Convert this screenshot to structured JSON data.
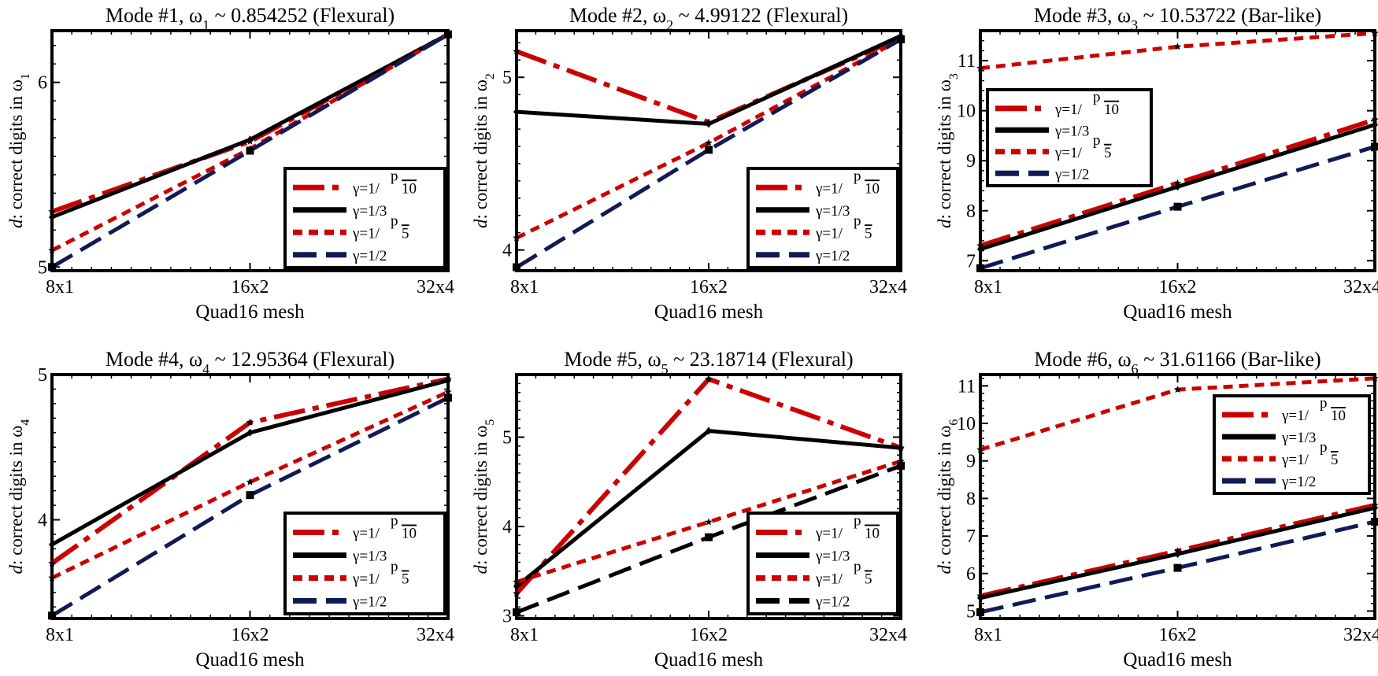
{
  "figure": {
    "legend_placement": "lower-right",
    "marker_colors": {
      "star": "#000000",
      "square": "#000000"
    }
  },
  "chart_data": [
    {
      "type": "line",
      "title": "Mode #1, ω₁ ~ 0.854252 (Flexural)",
      "title_parts": {
        "pre": "Mode #1, ω",
        "sub": "1",
        "post": " ~ 0.854252 (Flexural)"
      },
      "xlabel": "Quad16 mesh",
      "ylabel_parts": {
        "italic": "d",
        "pre": ": correct digits in ω",
        "sub": "1"
      },
      "categories": [
        "8x1",
        "16x2",
        "32x4"
      ],
      "ylim": [
        4.98,
        6.28
      ],
      "yticks": [
        5,
        6
      ],
      "legend_placement": "lower-right",
      "series": [
        {
          "name": "γ=1/p 10",
          "label_main": "γ=1/",
          "label_sup": "p",
          "label_over": "10",
          "color": "#cc0000",
          "dash": "40,10,8,10",
          "width": 6,
          "values": [
            5.3,
            5.68,
            6.26
          ]
        },
        {
          "name": "γ=1/3",
          "label_main": "γ=1/3",
          "color": "#000000",
          "dash": "",
          "width": 5,
          "values": [
            5.27,
            5.69,
            6.26
          ]
        },
        {
          "name": "γ=1/p 5",
          "label_main": "γ=1/",
          "label_sup": "p",
          "label_over": "5",
          "color": "#cc0000",
          "dash": "12,8",
          "width": 5,
          "values": [
            5.09,
            5.64,
            6.26
          ]
        },
        {
          "name": "γ=1/2",
          "label_main": "γ=1/2",
          "color": "#101a55",
          "dash": "30,12",
          "width": 5,
          "values": [
            5.0,
            5.63,
            6.26
          ]
        }
      ]
    },
    {
      "type": "line",
      "title": "Mode #2, ω₂ ~ 4.99122 (Flexural)",
      "title_parts": {
        "pre": "Mode #2, ω",
        "sub": "2",
        "post": " ~ 4.99122 (Flexural)"
      },
      "xlabel": "Quad16 mesh",
      "ylabel_parts": {
        "italic": "d",
        "pre": ": correct digits in ω",
        "sub": "2"
      },
      "categories": [
        "8x1",
        "16x2",
        "32x4"
      ],
      "ylim": [
        3.88,
        5.27
      ],
      "yticks": [
        4,
        5
      ],
      "legend_placement": "lower-right",
      "series": [
        {
          "name": "γ=1/p 10",
          "label_main": "γ=1/",
          "label_sup": "p",
          "label_over": "10",
          "color": "#cc0000",
          "dash": "40,10,8,10",
          "width": 6,
          "values": [
            5.15,
            4.74,
            5.23
          ]
        },
        {
          "name": "γ=1/3",
          "label_main": "γ=1/3",
          "color": "#000000",
          "dash": "",
          "width": 5,
          "values": [
            4.8,
            4.73,
            5.24
          ]
        },
        {
          "name": "γ=1/p 5",
          "label_main": "γ=1/",
          "label_sup": "p",
          "label_over": "5",
          "color": "#cc0000",
          "dash": "12,8",
          "width": 5,
          "values": [
            4.07,
            4.62,
            5.22
          ]
        },
        {
          "name": "γ=1/2",
          "label_main": "γ=1/2",
          "color": "#101a55",
          "dash": "30,12",
          "width": 5,
          "values": [
            3.9,
            4.58,
            5.22
          ]
        }
      ]
    },
    {
      "type": "line",
      "title": "Mode #3, ω₃ ~ 10.53722 (Bar-like)",
      "title_parts": {
        "pre": "Mode #3, ω",
        "sub": "3",
        "post": " ~ 10.53722 (Bar-like)"
      },
      "xlabel": "Quad16 mesh",
      "ylabel_parts": {
        "italic": "d",
        "pre": ": correct digits in ω",
        "sub": "3"
      },
      "categories": [
        "8x1",
        "16x2",
        "32x4"
      ],
      "ylim": [
        6.8,
        11.6
      ],
      "yticks": [
        7,
        8,
        9,
        10,
        11
      ],
      "legend_placement": "upper-left",
      "series": [
        {
          "name": "γ=1/p 10",
          "label_main": "γ=1/",
          "label_sup": "p",
          "label_over": "10",
          "color": "#cc0000",
          "dash": "40,10,8,10",
          "width": 6,
          "values": [
            7.3,
            8.55,
            9.82
          ]
        },
        {
          "name": "γ=1/3",
          "label_main": "γ=1/3",
          "color": "#000000",
          "dash": "",
          "width": 5,
          "values": [
            7.23,
            8.48,
            9.72
          ]
        },
        {
          "name": "γ=1/p 5",
          "label_main": "γ=1/",
          "label_sup": "p",
          "label_over": "5",
          "color": "#cc0000",
          "dash": "12,8",
          "width": 5,
          "values": [
            10.85,
            11.28,
            11.55
          ]
        },
        {
          "name": "γ=1/2",
          "label_main": "γ=1/2",
          "color": "#101a55",
          "dash": "30,12",
          "width": 5,
          "values": [
            6.85,
            8.08,
            9.28
          ]
        }
      ]
    },
    {
      "type": "line",
      "title": "Mode #4, ω₄ ~ 12.95364 (Flexural)",
      "title_parts": {
        "pre": "Mode #4, ω",
        "sub": "4",
        "post": " ~ 12.95364 (Flexural)"
      },
      "xlabel": "Quad16 mesh",
      "ylabel_parts": {
        "italic": "d",
        "pre": ": correct digits in ω",
        "sub": "4"
      },
      "categories": [
        "8x1",
        "16x2",
        "32x4"
      ],
      "ylim": [
        3.32,
        5.0
      ],
      "yticks": [
        4,
        5
      ],
      "legend_placement": "lower-right",
      "series": [
        {
          "name": "γ=1/p 10",
          "label_main": "γ=1/",
          "label_sup": "p",
          "label_over": "10",
          "color": "#cc0000",
          "dash": "40,10,8,10",
          "width": 6,
          "values": [
            3.7,
            4.67,
            4.97
          ]
        },
        {
          "name": "γ=1/3",
          "label_main": "γ=1/3",
          "color": "#000000",
          "dash": "",
          "width": 5,
          "values": [
            3.83,
            4.6,
            4.96
          ]
        },
        {
          "name": "γ=1/p 5",
          "label_main": "γ=1/",
          "label_sup": "p",
          "label_over": "5",
          "color": "#cc0000",
          "dash": "12,8",
          "width": 5,
          "values": [
            3.6,
            4.26,
            4.88
          ]
        },
        {
          "name": "γ=1/2",
          "label_main": "γ=1/2",
          "color": "#101a55",
          "dash": "30,12",
          "width": 5,
          "values": [
            3.34,
            4.17,
            4.84
          ]
        }
      ]
    },
    {
      "type": "line",
      "title": "Mode #5, ω₅ ~ 23.18714  (Flexural)",
      "title_parts": {
        "pre": "Mode #5, ω",
        "sub": "5",
        "post": " ~ 23.18714  (Flexural)"
      },
      "xlabel": "Quad16 mesh",
      "ylabel_parts": {
        "italic": "d",
        "pre": ": correct digits in ω",
        "sub": "5"
      },
      "categories": [
        "8x1",
        "16x2",
        "32x4"
      ],
      "ylim": [
        2.97,
        5.7
      ],
      "yticks": [
        3,
        4,
        5
      ],
      "legend_placement": "lower-right",
      "series": [
        {
          "name": "γ=1/p 10",
          "label_main": "γ=1/",
          "label_sup": "p",
          "label_over": "10",
          "color": "#cc0000",
          "dash": "40,10,8,10",
          "width": 6,
          "values": [
            3.25,
            5.65,
            4.88
          ]
        },
        {
          "name": "γ=1/3",
          "label_main": "γ=1/3",
          "color": "#000000",
          "dash": "",
          "width": 5,
          "values": [
            3.33,
            5.07,
            4.88
          ]
        },
        {
          "name": "γ=1/p 5",
          "label_main": "γ=1/",
          "label_sup": "p",
          "label_over": "5",
          "color": "#cc0000",
          "dash": "12,8",
          "width": 5,
          "values": [
            3.38,
            4.05,
            4.73
          ]
        },
        {
          "name": "γ=1/2",
          "label_main": "γ=1/2",
          "color": "#000000",
          "dash": "30,12",
          "width": 5,
          "values": [
            3.04,
            3.88,
            4.68
          ]
        }
      ]
    },
    {
      "type": "line",
      "title": "Mode #6, ω₆ ~ 31.61166  (Bar-like)",
      "title_parts": {
        "pre": "Mode #6, ω",
        "sub": "6",
        "post": " ~ 31.61166  (Bar-like)"
      },
      "xlabel": "Quad16 mesh",
      "ylabel_parts": {
        "italic": "d",
        "pre": ": correct digits in ω",
        "sub": "6"
      },
      "categories": [
        "8x1",
        "16x2",
        "32x4"
      ],
      "ylim": [
        4.8,
        11.3
      ],
      "yticks": [
        5,
        6,
        7,
        8,
        9,
        10,
        11
      ],
      "legend_placement": "upper-right",
      "series": [
        {
          "name": "γ=1/p 10",
          "label_main": "γ=1/",
          "label_sup": "p",
          "label_over": "10",
          "color": "#cc0000",
          "dash": "40,10,8,10",
          "width": 6,
          "values": [
            5.4,
            6.6,
            7.82
          ]
        },
        {
          "name": "γ=1/3",
          "label_main": "γ=1/3",
          "color": "#000000",
          "dash": "",
          "width": 5,
          "values": [
            5.35,
            6.52,
            7.75
          ]
        },
        {
          "name": "γ=1/p 5",
          "label_main": "γ=1/",
          "label_sup": "p",
          "label_over": "5",
          "color": "#cc0000",
          "dash": "12,8",
          "width": 5,
          "values": [
            9.3,
            10.9,
            11.2
          ]
        },
        {
          "name": "γ=1/2",
          "label_main": "γ=1/2",
          "color": "#101a55",
          "dash": "30,12",
          "width": 5,
          "values": [
            4.97,
            6.15,
            7.38
          ]
        }
      ]
    }
  ]
}
